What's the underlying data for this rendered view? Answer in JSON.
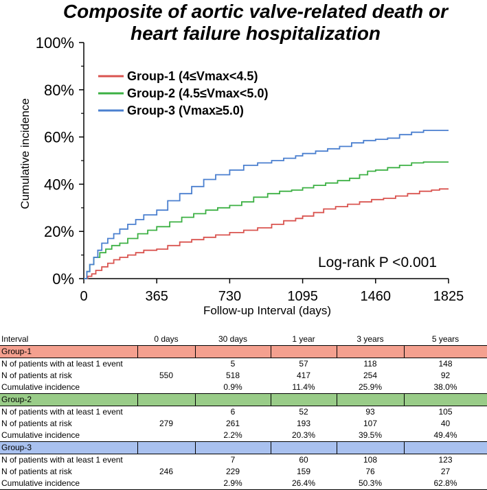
{
  "chart_data": {
    "type": "line",
    "title_line1": "Composite of aortic valve-related death or",
    "title_line2": "heart failure hospitalization",
    "xlabel": "Follow-up Interval (days)",
    "ylabel": "Cumulative incidence",
    "xlim": [
      0,
      1825
    ],
    "ylim": [
      0,
      100
    ],
    "x_ticks": [
      0,
      365,
      730,
      1095,
      1460,
      1825
    ],
    "x_tick_labels": [
      "0",
      "365",
      "730",
      "1095",
      "1460",
      "1825"
    ],
    "y_ticks": [
      0,
      20,
      40,
      60,
      80,
      100
    ],
    "y_tick_labels": [
      "0%",
      "20%",
      "40%",
      "60%",
      "80%",
      "100%"
    ],
    "annotation": "Log-rank P <0.001",
    "legend_position": "top-left",
    "series": [
      {
        "name": "Group-1 (4≤Vmax<4.5)",
        "color": "#d9534f",
        "x": [
          0,
          20,
          40,
          60,
          90,
          120,
          150,
          180,
          220,
          260,
          300,
          365,
          420,
          480,
          540,
          600,
          660,
          730,
          800,
          870,
          940,
          1000,
          1060,
          1095,
          1150,
          1200,
          1260,
          1320,
          1380,
          1440,
          1500,
          1560,
          1620,
          1680,
          1740,
          1780,
          1825
        ],
        "y": [
          0,
          1,
          2,
          3.5,
          5,
          6.5,
          8,
          9,
          10,
          11,
          12,
          12.5,
          14,
          15.5,
          16.5,
          17.5,
          18.5,
          19.5,
          20.5,
          21.5,
          23,
          24.5,
          25.5,
          26.5,
          28,
          29.5,
          30.5,
          31.5,
          32.5,
          33.5,
          34,
          35,
          36,
          37,
          37.5,
          38,
          38
        ]
      },
      {
        "name": "Group-2 (4.5≤Vmax<5.0)",
        "color": "#3cb043",
        "x": [
          0,
          15,
          30,
          50,
          80,
          110,
          140,
          180,
          220,
          270,
          320,
          365,
          430,
          490,
          550,
          610,
          670,
          730,
          790,
          850,
          920,
          980,
          1040,
          1095,
          1150,
          1210,
          1270,
          1330,
          1380,
          1420,
          1460,
          1520,
          1580,
          1640,
          1700,
          1760,
          1825
        ],
        "y": [
          0,
          3,
          6,
          9,
          11,
          12.5,
          14,
          15,
          17,
          19,
          20.5,
          22,
          24,
          26,
          27.5,
          29,
          30,
          31,
          32.5,
          34.5,
          36,
          37,
          37.5,
          38.5,
          39.5,
          40.5,
          41.5,
          42.5,
          44,
          45.5,
          46,
          47,
          48,
          49,
          49.4,
          49.4,
          49.4
        ]
      },
      {
        "name": "Group-3 (Vmax≥5.0)",
        "color": "#4a7fcf",
        "x": [
          0,
          15,
          30,
          50,
          70,
          90,
          120,
          150,
          180,
          220,
          260,
          300,
          365,
          420,
          480,
          540,
          600,
          660,
          730,
          800,
          870,
          940,
          1000,
          1060,
          1095,
          1160,
          1220,
          1280,
          1340,
          1400,
          1460,
          1520,
          1580,
          1640,
          1700,
          1760,
          1825
        ],
        "y": [
          0,
          3,
          6,
          9,
          12,
          15,
          17,
          19,
          21,
          23,
          25,
          27,
          29,
          33,
          36,
          39,
          42,
          44,
          46,
          48,
          49,
          50,
          51,
          52,
          53,
          54,
          55,
          56,
          57.5,
          58.5,
          59,
          59.5,
          61,
          62,
          62.8,
          62.8,
          62.8
        ]
      }
    ]
  },
  "table": {
    "header": [
      "Interval",
      "0 days",
      "30 days",
      "1 year",
      "3 years",
      "5 years"
    ],
    "groups": [
      {
        "name": "Group-1",
        "color": "#f4a08f",
        "rows": [
          {
            "label": "N of patients with at least 1 event",
            "values": [
              "",
              "5",
              "57",
              "118",
              "148"
            ]
          },
          {
            "label": "N of patients at risk",
            "values": [
              "550",
              "518",
              "417",
              "254",
              "92"
            ]
          },
          {
            "label": "Cumulative incidence",
            "values": [
              "",
              "0.9%",
              "11.4%",
              "25.9%",
              "38.0%"
            ]
          }
        ]
      },
      {
        "name": "Group-2",
        "color": "#99cc88",
        "rows": [
          {
            "label": "N of patients with at least 1 event",
            "values": [
              "",
              "6",
              "52",
              "93",
              "105"
            ]
          },
          {
            "label": "N of patients at risk",
            "values": [
              "279",
              "261",
              "193",
              "107",
              "40"
            ]
          },
          {
            "label": "Cumulative incidence",
            "values": [
              "",
              "2.2%",
              "20.3%",
              "39.5%",
              "49.4%"
            ]
          }
        ]
      },
      {
        "name": "Group-3",
        "color": "#a9c1ef",
        "rows": [
          {
            "label": "N of patients with at least 1 event",
            "values": [
              "",
              "7",
              "60",
              "108",
              "123"
            ]
          },
          {
            "label": "N of patients at risk",
            "values": [
              "246",
              "229",
              "159",
              "76",
              "27"
            ]
          },
          {
            "label": "Cumulative incidence",
            "values": [
              "",
              "2.9%",
              "26.4%",
              "50.3%",
              "62.8%"
            ]
          }
        ]
      }
    ]
  }
}
